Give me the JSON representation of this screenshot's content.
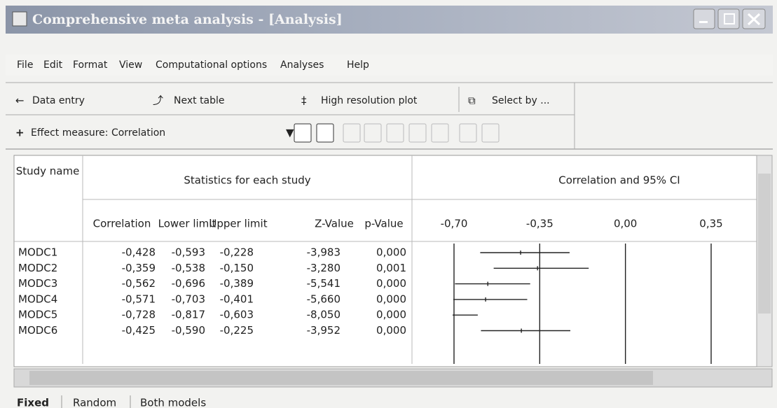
{
  "window": {
    "title": "Comprehensive meta analysis - [Analysis]"
  },
  "menu": [
    "File",
    "Edit",
    "Format",
    "View",
    "Computational options",
    "Analyses",
    "Help"
  ],
  "toolbar": {
    "row1": [
      "Data entry",
      "Next table",
      "High resolution plot",
      "Select by ..."
    ],
    "row2": "Effect measure: Correlation"
  },
  "table": {
    "study_header": "Study name",
    "stats_header": "Statistics for each study",
    "plot_header": "Correlation and 95% CI",
    "columns": [
      "Correlation",
      "Lower limit",
      "Upper limit",
      "Z-Value",
      "p-Value"
    ],
    "plot_ticks": [
      {
        "value": -0.7,
        "label": "-0,70"
      },
      {
        "value": -0.35,
        "label": "-0,35"
      },
      {
        "value": 0,
        "label": "0,00"
      },
      {
        "value": 0.35,
        "label": "0,35"
      }
    ],
    "rows": [
      [
        "MODC1",
        "-0,428",
        "-0,593",
        "-0,228",
        "-3,983",
        "0,000"
      ],
      [
        "MODC2",
        "-0,359",
        "-0,538",
        "-0,150",
        "-3,280",
        "0,001"
      ],
      [
        "MODC3",
        "-0,562",
        "-0,696",
        "-0,389",
        "-5,541",
        "0,000"
      ],
      [
        "MODC4",
        "-0,571",
        "-0,703",
        "-0,401",
        "-5,660",
        "0,000"
      ],
      [
        "MODC5",
        "-0,728",
        "-0,817",
        "-0,603",
        "-8,050",
        "0,000"
      ],
      [
        "MODC6",
        "-0,425",
        "-0,590",
        "-0,225",
        "-3,952",
        "0,000"
      ]
    ]
  },
  "tabs": [
    "Fixed",
    "Random",
    "Both models"
  ]
}
